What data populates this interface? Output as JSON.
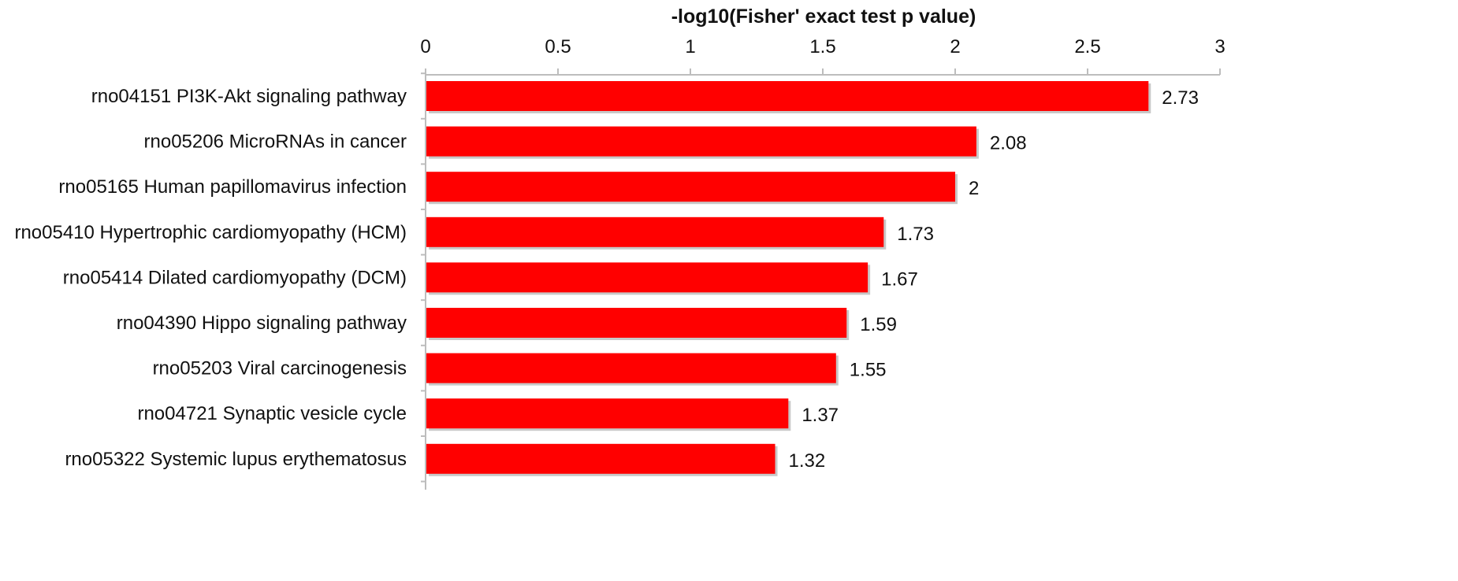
{
  "chart_data": {
    "type": "bar",
    "orientation": "horizontal",
    "xlabel": "-log10(Fisher' exact test p value)",
    "xlim": [
      0,
      3
    ],
    "x_ticks": [
      "0",
      "0.5",
      "1",
      "1.5",
      "2",
      "2.5",
      "3"
    ],
    "x_axis_position": "top",
    "grid": false,
    "bar_color": "#ff0000",
    "categories": [
      "rno04151 PI3K-Akt signaling pathway",
      "rno05206 MicroRNAs in cancer",
      "rno05165 Human papillomavirus infection",
      "rno05410 Hypertrophic cardiomyopathy (HCM)",
      "rno05414 Dilated cardiomyopathy (DCM)",
      "rno04390 Hippo signaling pathway",
      "rno05203 Viral carcinogenesis",
      "rno04721 Synaptic vesicle cycle",
      "rno05322 Systemic lupus erythematosus"
    ],
    "values": [
      2.73,
      2.08,
      2,
      1.73,
      1.67,
      1.59,
      1.55,
      1.37,
      1.32
    ],
    "value_labels": [
      "2.73",
      "2.08",
      "2",
      "1.73",
      "1.67",
      "1.59",
      "1.55",
      "1.37",
      "1.32"
    ]
  }
}
